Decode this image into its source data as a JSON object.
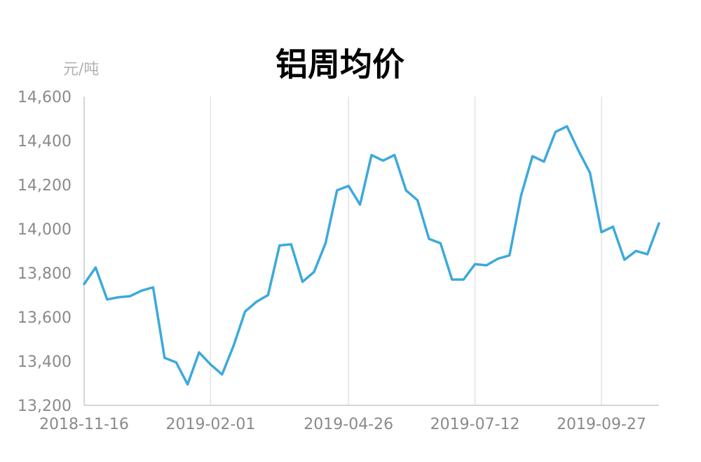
{
  "chart_data": {
    "type": "line",
    "title": "铝周均价",
    "ylabel": "元/吨",
    "xlabel": "",
    "ylim": [
      13200,
      14600
    ],
    "yticks": [
      13200,
      13400,
      13600,
      13800,
      14000,
      14200,
      14400,
      14600
    ],
    "ytick_labels": [
      "13,200",
      "13,400",
      "13,600",
      "13,800",
      "14,000",
      "14,200",
      "14,400",
      "14,600"
    ],
    "xtick_labels": [
      "2018-11-16",
      "2019-02-01",
      "2019-04-26",
      "2019-07-12",
      "2019-09-27"
    ],
    "xtick_indices": [
      0,
      11,
      23,
      34,
      45
    ],
    "grid": {
      "vertical": true,
      "horizontal": false
    },
    "line_color": "#3ca9dd",
    "series": [
      {
        "values": [
          13750,
          13825,
          13680,
          13690,
          13695,
          13720,
          13735,
          13415,
          13395,
          13295,
          13440,
          13385,
          13340,
          13470,
          13625,
          13670,
          13700,
          13925,
          13930,
          13760,
          13805,
          13935,
          14175,
          14195,
          14110,
          14335,
          14310,
          14335,
          14175,
          14130,
          13955,
          13935,
          13770,
          13770,
          13840,
          13835,
          13865,
          13880,
          14150,
          14330,
          14305,
          14440,
          14465,
          14355,
          14255,
          13985,
          14010,
          13860,
          13900,
          13885,
          14025
        ]
      }
    ]
  }
}
